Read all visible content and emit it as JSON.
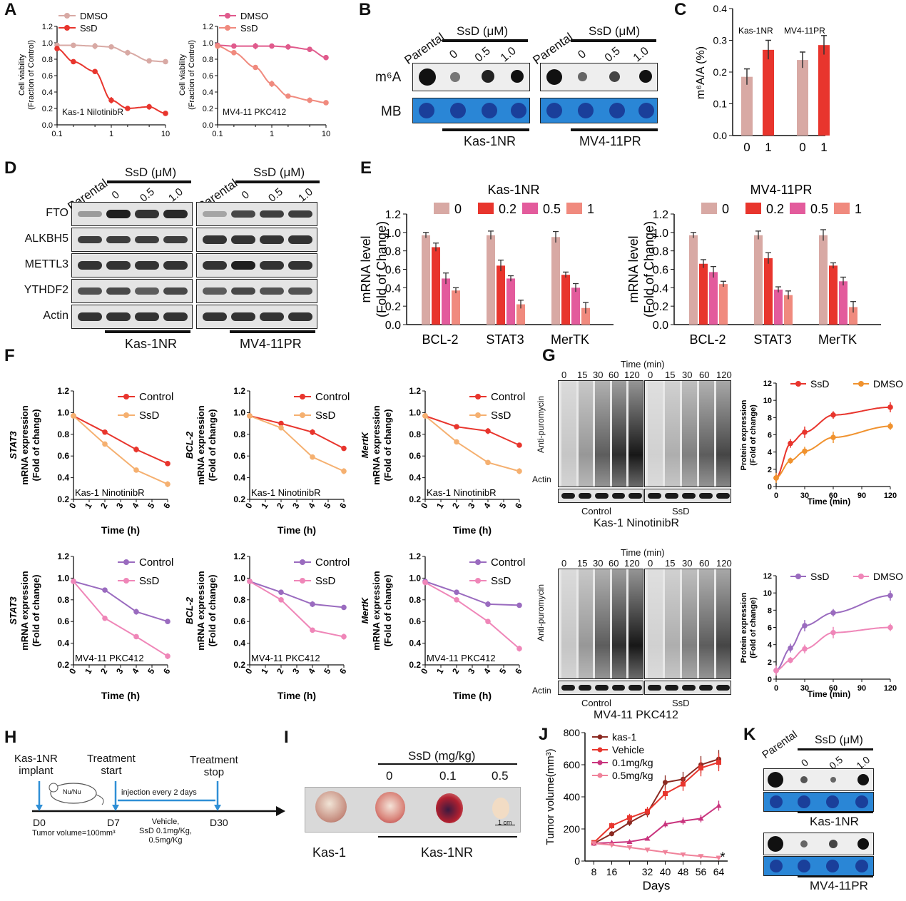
{
  "panels": {
    "A": "A",
    "B": "B",
    "C": "C",
    "D": "D",
    "E": "E",
    "F": "F",
    "G": "G",
    "H": "H",
    "I": "I",
    "J": "J",
    "K": "K"
  },
  "legend": {
    "dmso": "DMSO",
    "ssd": "SsD",
    "control": "Control",
    "vehicle": "Vehicle",
    "kas1": "kas-1",
    "dose01": "0.1mg/kg",
    "dose05": "0.5mg/kg"
  },
  "blots": {
    "parental": "Parental",
    "ssd_um": "SsD (μM)",
    "doses": [
      "0",
      "0.5",
      "1.0"
    ],
    "m6a": "m⁶A",
    "mb": "MB",
    "kas1nr": "Kas-1NR",
    "mv411pr": "MV4-11PR",
    "proteins": [
      "FTO",
      "ALKBH5",
      "METTL3",
      "YTHDF2",
      "Actin"
    ]
  },
  "panelA": {
    "ylabel1": "Cell viability",
    "ylabel2": "(Fraction of Control)",
    "inset_kas": "Kas-1 NilotinibR",
    "inset_mv": "MV4-11 PKC412"
  },
  "panelC": {
    "ylabel": "m⁶A/A (%)",
    "group1": "Kas-1NR",
    "group2": "MV4-11PR"
  },
  "panelE": {
    "title_kas": "Kas-1NR",
    "title_mv": "MV4-11PR",
    "legend": [
      "0",
      "0.2",
      "0.5",
      "1"
    ],
    "ylabel1": "mRNA level",
    "ylabel2": "(Fold of Change)",
    "genes": [
      "BCL-2",
      "STAT3",
      "MerTK"
    ]
  },
  "panelF": {
    "genes": [
      "STAT3",
      "BCL-2",
      "MertK"
    ],
    "ylabel": "mRNA expression",
    "ylabel2": "(Fold of change)",
    "xlabel": "Time (h)",
    "inset_kas": "Kas-1 NinotinibR",
    "inset_mv": "MV4-11 PKC412"
  },
  "panelG": {
    "time_label": "Time (min)",
    "times": [
      "0",
      "15",
      "30",
      "60",
      "120"
    ],
    "anti_puro": "Anti-puromycin",
    "actin": "Actin",
    "control": "Control",
    "ssd": "SsD",
    "caption_kas": "Kas-1 NinotinibR",
    "caption_mv": "MV4-11 PKC412",
    "ylabel": "Protein expression",
    "ylabel2": "(Fold of change)",
    "xlabel": "Time (min)"
  },
  "panelH": {
    "implant": "Kas-1NR\nimplant",
    "start": "Treatment\nstart",
    "stop": "Treatment\nstop",
    "mouse": "Nu/Nu",
    "injection": "injection every 2 days",
    "d0": "D0",
    "d7": "D7",
    "d30": "D30",
    "tumor": "Tumor volume=100mm³",
    "treat": "Vehicle,\nSsD 0.1mg/Kg,\n0.5mg/Kg"
  },
  "panelI": {
    "ssd": "SsD (mg/kg)",
    "doses": [
      "0",
      "0.1",
      "0.5"
    ],
    "scale": "1 cm",
    "kas1": "Kas-1",
    "kas1nr": "Kas-1NR"
  },
  "panelJ": {
    "ylabel": "Tumor volume(mm³)",
    "xlabel": "Days",
    "star": "*"
  },
  "chart_data": [
    {
      "id": "A1",
      "type": "line",
      "xscale": "log",
      "xlim": [
        0.1,
        10
      ],
      "ylim": [
        0,
        1.2
      ],
      "series": [
        {
          "name": "DMSO",
          "color": "#d8a9a4",
          "x": [
            0.1,
            0.2,
            0.5,
            1,
            2,
            5,
            10
          ],
          "y": [
            0.97,
            0.97,
            0.96,
            0.95,
            0.88,
            0.78,
            0.77
          ]
        },
        {
          "name": "SsD",
          "color": "#e8352d",
          "x": [
            0.1,
            0.2,
            0.5,
            1,
            2,
            5,
            10
          ],
          "y": [
            0.93,
            0.77,
            0.65,
            0.3,
            0.2,
            0.22,
            0.14
          ]
        }
      ]
    },
    {
      "id": "A2",
      "type": "line",
      "xscale": "log",
      "xlim": [
        0.1,
        10
      ],
      "ylim": [
        0,
        1.2
      ],
      "series": [
        {
          "name": "DMSO",
          "color": "#e05a8c",
          "x": [
            0.1,
            0.2,
            0.5,
            1,
            2,
            5,
            10
          ],
          "y": [
            0.97,
            0.96,
            0.96,
            0.96,
            0.95,
            0.92,
            0.82
          ]
        },
        {
          "name": "SsD",
          "color": "#f08a7e",
          "x": [
            0.1,
            0.2,
            0.5,
            1,
            2,
            5,
            10
          ],
          "y": [
            0.96,
            0.88,
            0.7,
            0.5,
            0.35,
            0.3,
            0.27
          ]
        }
      ]
    },
    {
      "id": "C",
      "type": "bar",
      "ylim": [
        0,
        0.4
      ],
      "categories": [
        "0",
        "1",
        "0",
        "1"
      ],
      "values": [
        0.185,
        0.27,
        0.238,
        0.285
      ],
      "errors": [
        0.025,
        0.03,
        0.025,
        0.03
      ],
      "colors": [
        "#d8a9a4",
        "#e8352d",
        "#d8a9a4",
        "#e8352d"
      ]
    },
    {
      "id": "E1",
      "type": "bar",
      "ylim": [
        0,
        1.2
      ],
      "categories": [
        "BCL-2",
        "STAT3",
        "MerTK"
      ],
      "series": [
        {
          "name": "0",
          "color": "#d8a9a4",
          "values": [
            0.97,
            0.97,
            0.95
          ]
        },
        {
          "name": "0.2",
          "color": "#e8352d",
          "values": [
            0.84,
            0.64,
            0.54
          ]
        },
        {
          "name": "0.5",
          "color": "#e35b9c",
          "values": [
            0.5,
            0.5,
            0.4
          ]
        },
        {
          "name": "1",
          "color": "#f08a7e",
          "values": [
            0.37,
            0.22,
            0.18
          ]
        }
      ]
    },
    {
      "id": "E2",
      "type": "bar",
      "ylim": [
        0,
        1.2
      ],
      "categories": [
        "BCL-2",
        "STAT3",
        "MerTK"
      ],
      "series": [
        {
          "name": "0",
          "color": "#d8a9a4",
          "values": [
            0.97,
            0.97,
            0.97
          ]
        },
        {
          "name": "0.2",
          "color": "#e8352d",
          "values": [
            0.66,
            0.72,
            0.64
          ]
        },
        {
          "name": "0.5",
          "color": "#e35b9c",
          "values": [
            0.57,
            0.38,
            0.47
          ]
        },
        {
          "name": "1",
          "color": "#f08a7e",
          "values": [
            0.44,
            0.32,
            0.19
          ]
        }
      ]
    },
    {
      "id": "F1",
      "type": "line",
      "xlim": [
        0,
        6
      ],
      "ylim": [
        0.2,
        1.2
      ],
      "x": [
        0,
        2,
        4,
        6
      ],
      "series": [
        {
          "name": "Control",
          "color": "#e8352d",
          "y": [
            0.97,
            0.82,
            0.66,
            0.53
          ]
        },
        {
          "name": "SsD",
          "color": "#f5b070",
          "y": [
            0.97,
            0.71,
            0.47,
            0.34
          ]
        }
      ]
    },
    {
      "id": "F2",
      "type": "line",
      "xlim": [
        0,
        6
      ],
      "ylim": [
        0.2,
        1.2
      ],
      "x": [
        0,
        2,
        4,
        6
      ],
      "series": [
        {
          "name": "Control",
          "color": "#e8352d",
          "y": [
            0.97,
            0.9,
            0.82,
            0.67
          ]
        },
        {
          "name": "SsD",
          "color": "#f5b070",
          "y": [
            0.97,
            0.86,
            0.59,
            0.46
          ]
        }
      ]
    },
    {
      "id": "F3",
      "type": "line",
      "xlim": [
        0,
        6
      ],
      "ylim": [
        0.2,
        1.2
      ],
      "x": [
        0,
        2,
        4,
        6
      ],
      "series": [
        {
          "name": "Control",
          "color": "#e8352d",
          "y": [
            0.97,
            0.87,
            0.83,
            0.7
          ]
        },
        {
          "name": "SsD",
          "color": "#f5b070",
          "y": [
            0.97,
            0.73,
            0.54,
            0.46
          ]
        }
      ]
    },
    {
      "id": "F4",
      "type": "line",
      "xlim": [
        0,
        6
      ],
      "ylim": [
        0.2,
        1.2
      ],
      "x": [
        0,
        2,
        4,
        6
      ],
      "series": [
        {
          "name": "Control",
          "color": "#9a6bbf",
          "y": [
            0.97,
            0.89,
            0.69,
            0.6
          ]
        },
        {
          "name": "SsD",
          "color": "#ef86b8",
          "y": [
            0.97,
            0.63,
            0.46,
            0.28
          ]
        }
      ]
    },
    {
      "id": "F5",
      "type": "line",
      "xlim": [
        0,
        6
      ],
      "ylim": [
        0.2,
        1.2
      ],
      "x": [
        0,
        2,
        4,
        6
      ],
      "series": [
        {
          "name": "Control",
          "color": "#9a6bbf",
          "y": [
            0.97,
            0.87,
            0.76,
            0.73
          ]
        },
        {
          "name": "SsD",
          "color": "#ef86b8",
          "y": [
            0.97,
            0.8,
            0.52,
            0.46
          ]
        }
      ]
    },
    {
      "id": "F6",
      "type": "line",
      "xlim": [
        0,
        6
      ],
      "ylim": [
        0.2,
        1.2
      ],
      "x": [
        0,
        2,
        4,
        6
      ],
      "series": [
        {
          "name": "Control",
          "color": "#9a6bbf",
          "y": [
            0.97,
            0.87,
            0.76,
            0.75
          ]
        },
        {
          "name": "SsD",
          "color": "#ef86b8",
          "y": [
            0.96,
            0.8,
            0.6,
            0.35
          ]
        }
      ]
    },
    {
      "id": "G1",
      "type": "line",
      "xlim": [
        0,
        120
      ],
      "ylim": [
        0,
        12
      ],
      "x": [
        0,
        15,
        30,
        60,
        120
      ],
      "series": [
        {
          "name": "SsD",
          "color": "#e8352d",
          "y": [
            1,
            5,
            6.3,
            8.3,
            9.2
          ]
        },
        {
          "name": "DMSO",
          "color": "#f0922e",
          "y": [
            1,
            3,
            4.1,
            5.7,
            7
          ]
        }
      ]
    },
    {
      "id": "G2",
      "type": "line",
      "xlim": [
        0,
        120
      ],
      "ylim": [
        0,
        12
      ],
      "x": [
        0,
        15,
        30,
        60,
        120
      ],
      "series": [
        {
          "name": "SsD",
          "color": "#9a6bbf",
          "y": [
            1,
            3.6,
            6.2,
            7.7,
            9.7
          ]
        },
        {
          "name": "DMSO",
          "color": "#ef86b8",
          "y": [
            1,
            2.2,
            3.5,
            5.4,
            6
          ]
        }
      ]
    },
    {
      "id": "J",
      "type": "line",
      "xlim": [
        4,
        68
      ],
      "ylim": [
        0,
        800
      ],
      "x": [
        8,
        16,
        24,
        32,
        40,
        48,
        56,
        64
      ],
      "series": [
        {
          "name": "kas-1",
          "color": "#8b2a22",
          "y": [
            110,
            170,
            240,
            300,
            490,
            510,
            600,
            635
          ]
        },
        {
          "name": "Vehicle",
          "color": "#e8352d",
          "y": [
            115,
            220,
            270,
            310,
            420,
            480,
            580,
            615
          ]
        },
        {
          "name": "0.1mg/kg",
          "color": "#c9347e",
          "y": [
            110,
            115,
            120,
            140,
            230,
            250,
            265,
            345
          ]
        },
        {
          "name": "0.5mg/kg",
          "color": "#f0829a",
          "y": [
            110,
            100,
            85,
            70,
            55,
            40,
            30,
            20
          ]
        }
      ]
    }
  ]
}
